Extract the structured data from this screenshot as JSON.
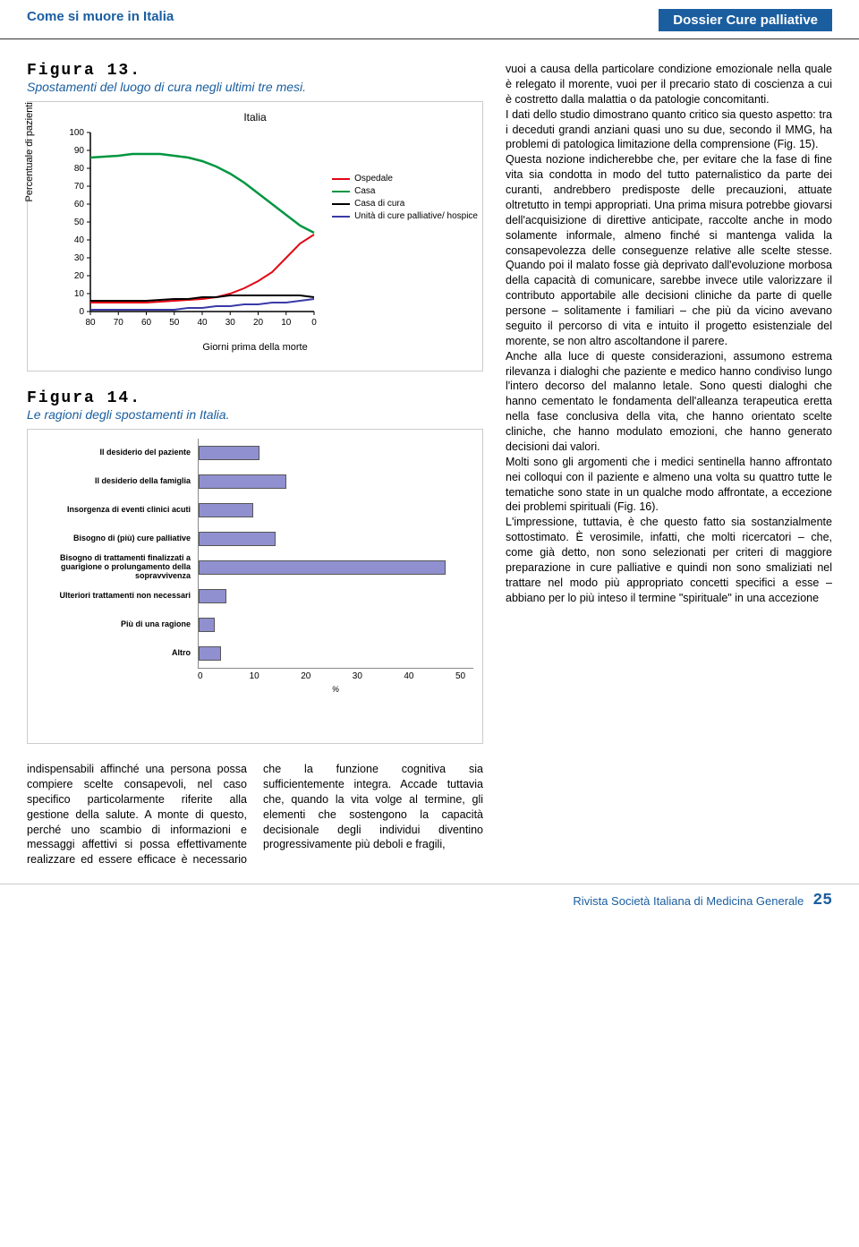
{
  "header": {
    "left": "Come si muore in Italia",
    "right": "Dossier Cure palliative"
  },
  "fig13": {
    "label": "Figura 13.",
    "caption": "Spostamenti del luogo di cura negli ultimi tre mesi.",
    "chart_title": "Italia",
    "yaxis_label": "Percentuale di pazienti",
    "xaxis_label": "Giorni prima della morte",
    "ylim": [
      0,
      100
    ],
    "yticks": [
      0,
      10,
      20,
      30,
      40,
      50,
      60,
      70,
      80,
      90,
      100
    ],
    "xticks": [
      80,
      70,
      60,
      50,
      40,
      30,
      20,
      10,
      0
    ],
    "series": [
      {
        "name": "Ospedale",
        "color": "#e30613",
        "points": [
          [
            80,
            5
          ],
          [
            70,
            5
          ],
          [
            60,
            5
          ],
          [
            50,
            6
          ],
          [
            40,
            7
          ],
          [
            35,
            8
          ],
          [
            30,
            10
          ],
          [
            25,
            13
          ],
          [
            20,
            17
          ],
          [
            15,
            22
          ],
          [
            10,
            30
          ],
          [
            5,
            38
          ],
          [
            0,
            43
          ]
        ],
        "width": 2
      },
      {
        "name": "Casa",
        "color": "#009640",
        "points": [
          [
            80,
            86
          ],
          [
            70,
            87
          ],
          [
            65,
            88
          ],
          [
            60,
            88
          ],
          [
            55,
            88
          ],
          [
            50,
            87
          ],
          [
            45,
            86
          ],
          [
            40,
            84
          ],
          [
            35,
            81
          ],
          [
            30,
            77
          ],
          [
            25,
            72
          ],
          [
            20,
            66
          ],
          [
            15,
            60
          ],
          [
            10,
            54
          ],
          [
            5,
            48
          ],
          [
            0,
            44
          ]
        ],
        "width": 2.5
      },
      {
        "name": "Casa di cura",
        "color": "#000000",
        "points": [
          [
            80,
            6
          ],
          [
            70,
            6
          ],
          [
            60,
            6
          ],
          [
            50,
            7
          ],
          [
            45,
            7
          ],
          [
            40,
            8
          ],
          [
            35,
            8
          ],
          [
            30,
            9
          ],
          [
            25,
            9
          ],
          [
            20,
            9
          ],
          [
            15,
            9
          ],
          [
            10,
            9
          ],
          [
            5,
            9
          ],
          [
            0,
            8
          ]
        ],
        "width": 2
      },
      {
        "name": "Unità di cure palliative/ hospice",
        "color": "#3a3aa8",
        "points": [
          [
            80,
            1
          ],
          [
            70,
            1
          ],
          [
            60,
            1
          ],
          [
            55,
            1
          ],
          [
            50,
            1
          ],
          [
            45,
            2
          ],
          [
            40,
            2
          ],
          [
            35,
            3
          ],
          [
            30,
            3
          ],
          [
            25,
            4
          ],
          [
            20,
            4
          ],
          [
            15,
            5
          ],
          [
            10,
            5
          ],
          [
            5,
            6
          ],
          [
            0,
            7
          ]
        ],
        "width": 2
      }
    ]
  },
  "fig14": {
    "label": "Figura 14.",
    "caption": "Le ragioni degli spostamenti in Italia.",
    "bar_color": "#9090d0",
    "xlim": [
      0,
      50
    ],
    "xticks": [
      0,
      10,
      20,
      30,
      40,
      50
    ],
    "xaxis_char": "%",
    "bars": [
      {
        "label": "Il desiderio del paziente",
        "value": 11
      },
      {
        "label": "Il desiderio della famiglia",
        "value": 16
      },
      {
        "label": "Insorgenza di eventi clinici acuti",
        "value": 10
      },
      {
        "label": "Bisogno di (più) cure palliative",
        "value": 14
      },
      {
        "label": "Bisogno di trattamenti finalizzati a guarigione o prolungamento della sopravvivenza",
        "value": 45
      },
      {
        "label": "Ulteriori trattamenti non necessari",
        "value": 5
      },
      {
        "label": "Più di una ragione",
        "value": 3
      },
      {
        "label": "Altro",
        "value": 4
      }
    ]
  },
  "body_left": "indispensabili affinché una persona possa compiere scelte consapevoli, nel caso specifico particolarmente riferite alla gestione della salute. A monte di questo, perché uno scambio di informazioni e messaggi affettivi si possa effettivamente realizzare ed essere efficace è necessario che la funzione cognitiva sia sufficientemente integra. Accade tuttavia che, quando la vita volge al termine, gli elementi che sostengono la capacità decisionale degli individui diventino progressivamente più deboli e fragili,",
  "body_right": "vuoi a causa della particolare condizione emozionale nella quale è relegato il morente, vuoi per il precario stato di coscienza a cui è costretto dalla malattia o da patologie concomitanti.\nI dati dello studio dimostrano quanto critico sia questo aspetto: tra i deceduti grandi anziani quasi uno su due, secondo il MMG, ha problemi di patologica limitazione della comprensione (Fig. 15).\nQuesta nozione indicherebbe che, per evitare che la fase di fine vita sia condotta in modo del tutto paternalistico da parte dei curanti, andrebbero predisposte delle precauzioni, attuate oltretutto in tempi appropriati. Una prima misura potrebbe giovarsi dell'acquisizione di direttive anticipate, raccolte anche in modo solamente informale, almeno finché si mantenga valida la consapevolezza delle conseguenze relative alle scelte stesse. Quando poi il malato fosse già deprivato dall'evoluzione morbosa della capacità di comunicare, sarebbe invece utile valorizzare il contributo apportabile alle decisioni cliniche da parte di quelle persone – solitamente i familiari – che più da vicino avevano seguito il percorso di vita e intuito il progetto esistenziale del morente, se non altro ascoltandone il parere.\nAnche alla luce di queste considerazioni, assumono estrema rilevanza i dialoghi che paziente e medico hanno condiviso lungo l'intero decorso del malanno letale. Sono questi dialoghi che hanno cementato le fondamenta dell'alleanza terapeutica eretta nella fase conclusiva della vita, che hanno orientato scelte cliniche, che hanno modulato emozioni, che hanno generato decisioni dai valori.\nMolti sono gli argomenti che i medici sentinella hanno affrontato nei colloqui con il paziente e almeno una volta su quattro tutte le tematiche sono state in un qualche modo affrontate, a eccezione dei problemi spirituali (Fig. 16).\nL'impressione, tuttavia, è che questo fatto sia sostanzialmente sottostimato. È verosimile, infatti, che molti ricercatori – che, come già detto, non sono selezionati per criteri di maggiore preparazione in cure palliative e quindi non sono smaliziati nel trattare nel modo più appropriato concetti specifici a esse – abbiano per lo più inteso il termine \"spirituale\" in una accezione",
  "footer": {
    "text": "Rivista Società Italiana di Medicina Generale",
    "page": "25"
  }
}
